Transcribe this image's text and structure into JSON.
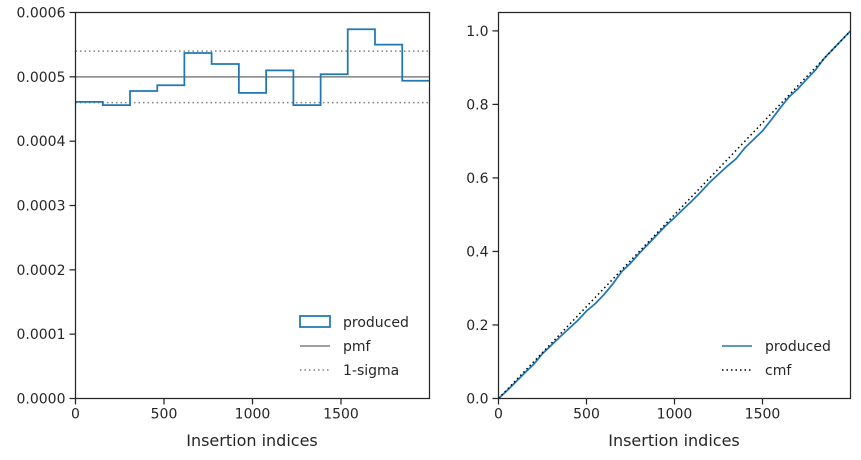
{
  "chart_data": [
    {
      "type": "step-histogram",
      "xlabel": "Insertion indices",
      "ylabel": "",
      "xlim": [
        0,
        2000
      ],
      "ylim": [
        0,
        0.0006
      ],
      "xticks": [
        0,
        500,
        1000,
        1500
      ],
      "xtick_labels": [
        "0",
        "500",
        "1000",
        "1500"
      ],
      "yticks": [
        0,
        0.0001,
        0.0002,
        0.0003,
        0.0004,
        0.0005,
        0.0006
      ],
      "ytick_labels": [
        "0.0000",
        "0.0001",
        "0.0002",
        "0.0003",
        "0.0004",
        "0.0005",
        "0.0006"
      ],
      "bin_edges": [
        0,
        154,
        308,
        462,
        615,
        769,
        923,
        1077,
        1231,
        1385,
        1538,
        1692,
        1846,
        2000
      ],
      "series": [
        {
          "name": "produced",
          "color": "#1f77b4",
          "style": "step",
          "values": [
            0.000461,
            0.000456,
            0.000478,
            0.000487,
            0.000537,
            0.00052,
            0.000475,
            0.00051,
            0.000456,
            0.000504,
            0.000574,
            0.00055,
            0.000494
          ]
        }
      ],
      "hlines": [
        {
          "name": "pmf",
          "y": 0.0005,
          "color": "#808080",
          "style": "solid"
        },
        {
          "name": "1-sigma",
          "y": 0.00054,
          "color": "#808080",
          "style": "dotted"
        },
        {
          "name": "1-sigma",
          "y": 0.00046,
          "color": "#808080",
          "style": "dotted"
        }
      ],
      "legend": {
        "placement": "lower-right",
        "entries": [
          "produced",
          "pmf",
          "1-sigma"
        ]
      },
      "grid": false
    },
    {
      "type": "line",
      "xlabel": "Insertion indices",
      "ylabel": "",
      "xlim": [
        0,
        2000
      ],
      "ylim": [
        0,
        1.05
      ],
      "xticks": [
        0,
        500,
        1000,
        1500
      ],
      "xtick_labels": [
        "0",
        "500",
        "1000",
        "1500"
      ],
      "yticks": [
        0,
        0.2,
        0.4,
        0.6,
        0.8,
        1.0
      ],
      "ytick_labels": [
        "0.0",
        "0.2",
        "0.4",
        "0.6",
        "0.8",
        "1.0"
      ],
      "series": [
        {
          "name": "produced",
          "color": "#1f77b4",
          "style": "solid",
          "x": [
            0,
            50,
            100,
            150,
            200,
            250,
            300,
            350,
            400,
            450,
            500,
            550,
            600,
            650,
            700,
            750,
            800,
            850,
            900,
            950,
            1000,
            1050,
            1100,
            1150,
            1200,
            1250,
            1300,
            1350,
            1400,
            1450,
            1500,
            1550,
            1600,
            1650,
            1700,
            1750,
            1800,
            1850,
            1900,
            1950,
            2000
          ],
          "y": [
            0,
            0.022,
            0.046,
            0.07,
            0.093,
            0.122,
            0.145,
            0.168,
            0.19,
            0.212,
            0.238,
            0.258,
            0.283,
            0.312,
            0.345,
            0.368,
            0.395,
            0.42,
            0.445,
            0.47,
            0.492,
            0.515,
            0.538,
            0.562,
            0.588,
            0.61,
            0.632,
            0.652,
            0.682,
            0.705,
            0.728,
            0.758,
            0.79,
            0.82,
            0.842,
            0.868,
            0.893,
            0.925,
            0.95,
            0.975,
            1.0
          ]
        },
        {
          "name": "cmf",
          "color": "#000000",
          "style": "dotted",
          "x": [
            0,
            2000
          ],
          "y": [
            0,
            1.0
          ]
        }
      ],
      "legend": {
        "placement": "lower-right",
        "entries": [
          "produced",
          "cmf"
        ]
      },
      "grid": false
    }
  ]
}
